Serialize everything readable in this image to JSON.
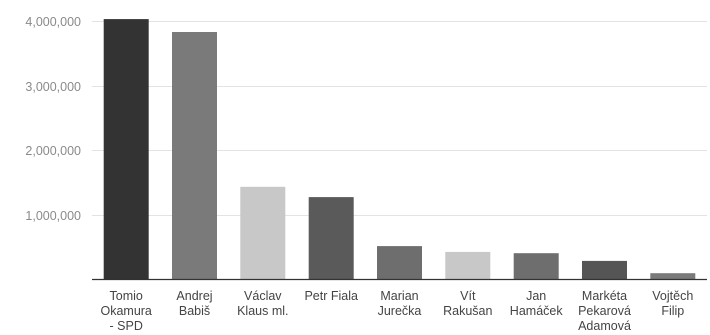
{
  "chart_data": {
    "type": "bar",
    "title": "",
    "xlabel": "",
    "ylabel": "",
    "categories": [
      [
        "Tomio",
        "Okamura",
        "- SPD"
      ],
      [
        "Andrej",
        "Babiš"
      ],
      [
        "Václav",
        "Klaus ml."
      ],
      [
        "Petr Fiala"
      ],
      [
        "Marian",
        "Jurečka"
      ],
      [
        "Vít",
        "Rakušan"
      ],
      [
        "Jan",
        "Hamáček"
      ],
      [
        "Markéta",
        "Pekarová",
        "Adamová"
      ],
      [
        "Vojtěch",
        "Filip"
      ]
    ],
    "values": [
      4030000,
      3830000,
      1430000,
      1270000,
      510000,
      420000,
      400000,
      280000,
      90000
    ],
    "colors": [
      "#333333",
      "#7a7a7a",
      "#c8c8c8",
      "#5a5a5a",
      "#6e6e6e",
      "#c8c8c8",
      "#6e6e6e",
      "#555555",
      "#7a7a7a"
    ],
    "ylim": [
      0,
      4000000
    ],
    "yticks": [
      1000000,
      2000000,
      3000000,
      4000000
    ],
    "ytick_labels": [
      "1,000,000",
      "2,000,000",
      "3,000,000",
      "4,000,000"
    ],
    "grid": true,
    "legend": "none"
  }
}
